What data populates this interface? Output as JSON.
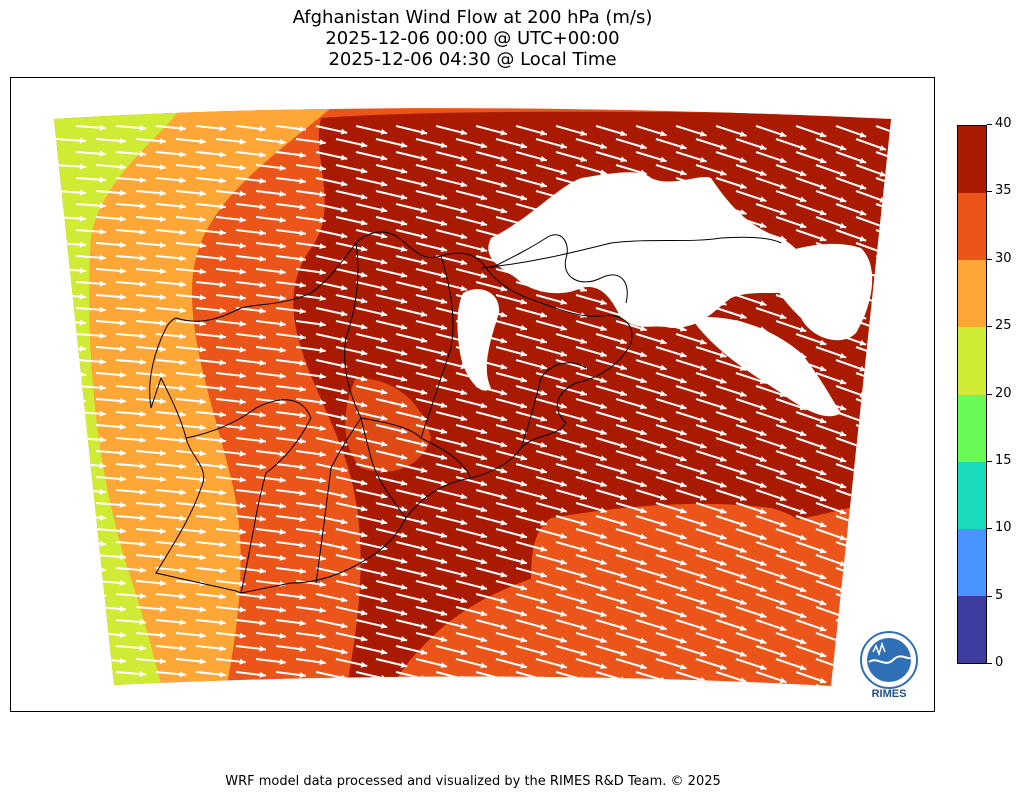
{
  "title": {
    "line1": "Afghanistan Wind Flow at 200 hPa (m/s)",
    "line2": "2025-12-06 00:00 @ UTC+00:00",
    "line3": "2025-12-06 04:30 @ Local Time"
  },
  "colorbar": {
    "ticks": [
      "0",
      "5",
      "10",
      "15",
      "20",
      "25",
      "30",
      "35",
      "40"
    ],
    "colors": [
      "#3d3d9f",
      "#4a94ff",
      "#19dcbe",
      "#68fb55",
      "#cfeb33",
      "#ffa736",
      "#ec5519",
      "#a91a00"
    ]
  },
  "logo": {
    "text": "RIMES",
    "icon": "rimes-logo-icon"
  },
  "footer": "WRF model data processed and visualized by the RIMES R&D Team. © 2025"
}
